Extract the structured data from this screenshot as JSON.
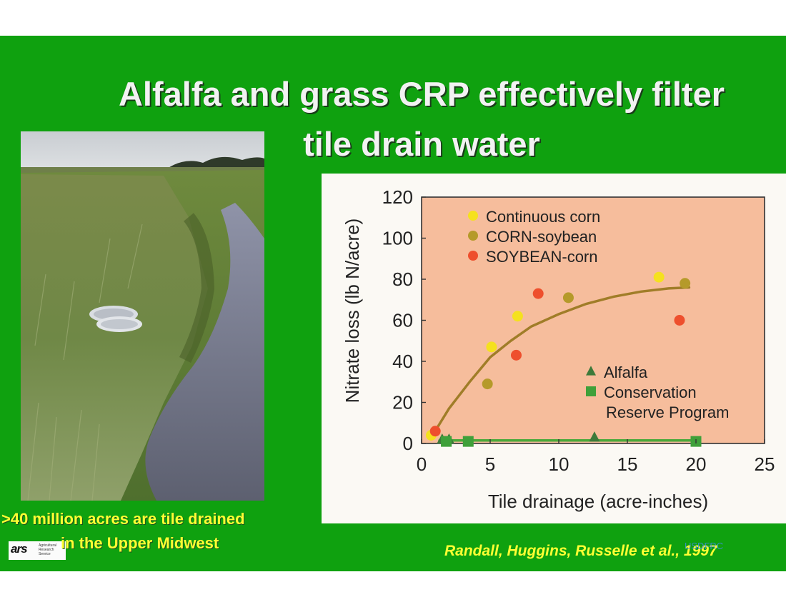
{
  "slide": {
    "title_line1": "Alfalfa and grass CRP effectively filter",
    "title_line2": "tile drain water",
    "caption_line1": ">40 million acres are tile drained",
    "caption_line2": "in the Upper Midwest",
    "citation": "Randall, Huggins, Russelle et al., 1997",
    "watermark": "USDFRC",
    "logo": {
      "mark": "ars",
      "text": "Agricultural Research Service"
    },
    "photo": {
      "subject": "drainage ditch with tile outlets and grass banks"
    },
    "colors": {
      "background": "#0fa10f",
      "title": "#f2f2f2",
      "caption": "#ffff33"
    }
  },
  "chart_data": {
    "type": "scatter",
    "title": "",
    "xlabel": "Tile drainage (acre-inches)",
    "ylabel": "Nitrate loss (lb N/acre)",
    "xlim": [
      0,
      25
    ],
    "ylim": [
      0,
      120
    ],
    "xticks": [
      "0",
      "5",
      "10",
      "15",
      "20",
      "25"
    ],
    "yticks": [
      "0",
      "20",
      "40",
      "60",
      "80",
      "100",
      "120"
    ],
    "grid": false,
    "background": "#f6bd9c",
    "legend_top": [
      {
        "label": "Continuous corn",
        "color": "#f5e11e",
        "marker": "circle"
      },
      {
        "label": "CORN-soybean",
        "color": "#b59a2a",
        "marker": "circle"
      },
      {
        "label": "SOYBEAN-corn",
        "color": "#ee4f2d",
        "marker": "circle"
      }
    ],
    "legend_bottom": [
      {
        "label": "Alfalfa",
        "color": "#3d7a3a",
        "marker": "triangle"
      },
      {
        "label": "Conservation",
        "color": "#3fa03a",
        "marker": "square"
      },
      {
        "label": "Reserve Program",
        "color": "",
        "marker": ""
      }
    ],
    "series": [
      {
        "name": "Continuous corn",
        "color": "#f5e11e",
        "marker": "circle",
        "points": [
          [
            0.7,
            4
          ],
          [
            5.1,
            47
          ],
          [
            7.0,
            62
          ],
          [
            17.3,
            81
          ]
        ]
      },
      {
        "name": "CORN-soybean",
        "color": "#b59a2a",
        "marker": "circle",
        "points": [
          [
            4.8,
            29
          ],
          [
            10.7,
            71
          ],
          [
            19.2,
            78
          ]
        ]
      },
      {
        "name": "SOYBEAN-corn",
        "color": "#ee4f2d",
        "marker": "circle",
        "points": [
          [
            1.0,
            6
          ],
          [
            6.9,
            43
          ],
          [
            8.5,
            73
          ],
          [
            18.8,
            60
          ]
        ]
      },
      {
        "name": "Alfalfa",
        "color": "#3d7a3a",
        "marker": "triangle",
        "points": [
          [
            1.5,
            2
          ],
          [
            2.0,
            2
          ],
          [
            12.6,
            3
          ]
        ]
      },
      {
        "name": "Conservation",
        "color": "#3fa03a",
        "marker": "square",
        "points": [
          [
            1.8,
            1
          ],
          [
            3.4,
            1
          ],
          [
            20.0,
            1
          ]
        ]
      }
    ],
    "trend_lines": [
      {
        "color": "#a07d28",
        "points": [
          [
            0.8,
            4
          ],
          [
            2,
            17
          ],
          [
            3.5,
            30
          ],
          [
            5,
            42
          ],
          [
            6.5,
            50
          ],
          [
            8,
            57
          ],
          [
            10,
            63
          ],
          [
            12,
            68
          ],
          [
            14,
            71.5
          ],
          [
            16,
            74
          ],
          [
            18,
            75.5
          ],
          [
            19.5,
            76
          ]
        ]
      },
      {
        "color": "#4aa83a",
        "points": [
          [
            1.3,
            1.5
          ],
          [
            20.0,
            1.5
          ]
        ]
      }
    ]
  }
}
